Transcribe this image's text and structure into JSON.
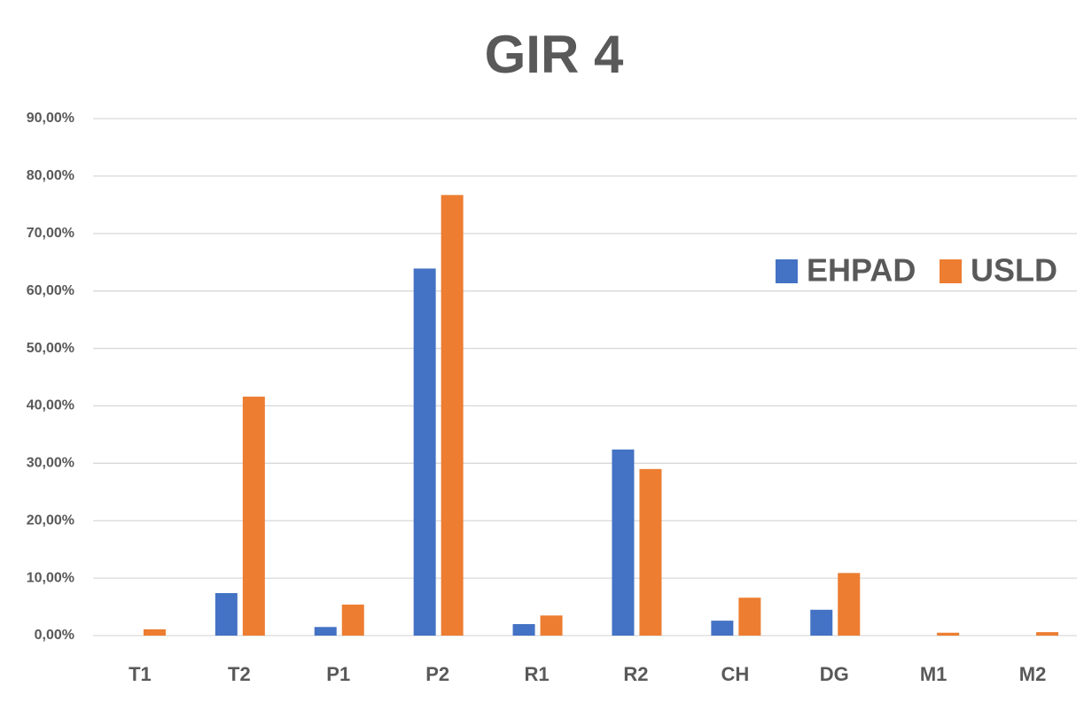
{
  "chart_data": {
    "type": "bar",
    "title": "GIR 4",
    "categories": [
      "T1",
      "T2",
      "P1",
      "P2",
      "R1",
      "R2",
      "CH",
      "DG",
      "M1",
      "M2"
    ],
    "series": [
      {
        "name": "EHPAD",
        "color": "#4472c4",
        "values": [
          0,
          7.4,
          1.5,
          63.9,
          2.0,
          32.4,
          2.6,
          4.5,
          0,
          0
        ]
      },
      {
        "name": "USLD",
        "color": "#ed7d31",
        "values": [
          1.1,
          41.6,
          5.4,
          76.7,
          3.5,
          29.0,
          6.6,
          10.9,
          0.5,
          0.6
        ]
      }
    ],
    "ylim": [
      0,
      90
    ],
    "yticks": [
      {
        "value": 0,
        "label": "0,00%"
      },
      {
        "value": 10,
        "label": "10,00%"
      },
      {
        "value": 20,
        "label": "20,00%"
      },
      {
        "value": 30,
        "label": "30,00%"
      },
      {
        "value": 40,
        "label": "40,00%"
      },
      {
        "value": 50,
        "label": "50,00%"
      },
      {
        "value": 60,
        "label": "60,00%"
      },
      {
        "value": 70,
        "label": "70,00%"
      },
      {
        "value": 80,
        "label": "80,00%"
      },
      {
        "value": 90,
        "label": "90,00%"
      }
    ],
    "grid": true,
    "legend": "upper right"
  }
}
